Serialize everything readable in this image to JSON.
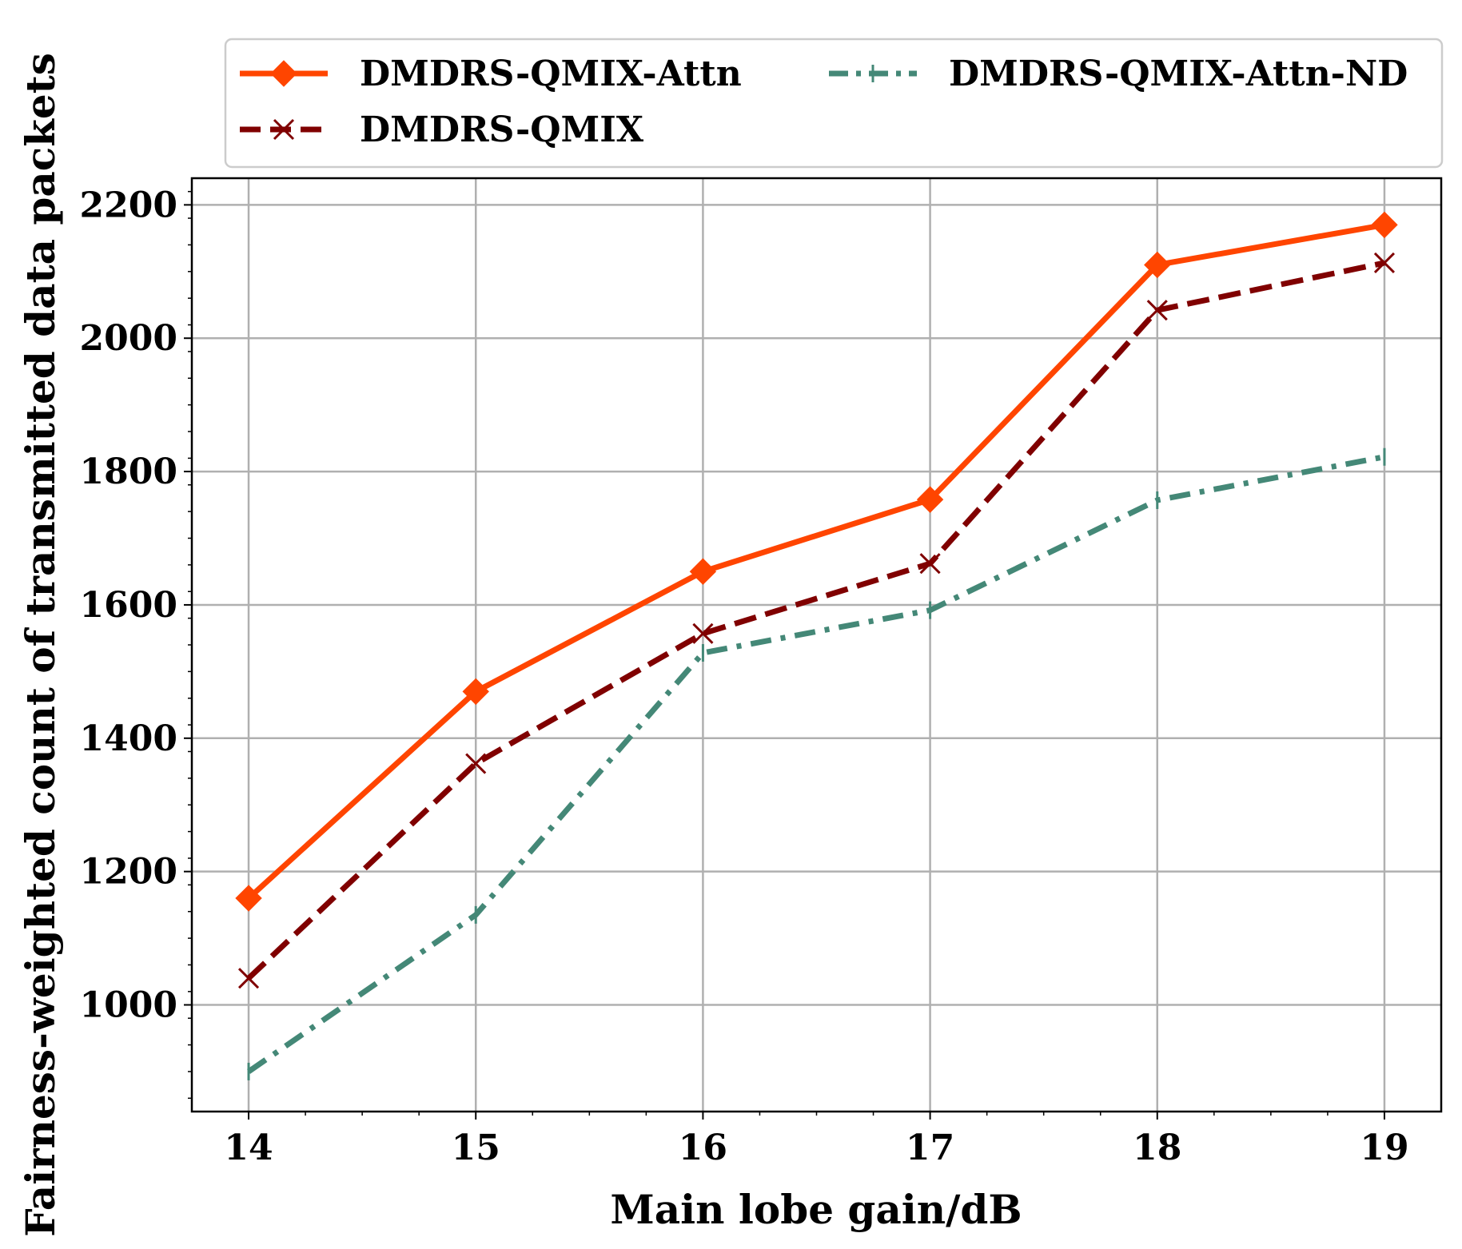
{
  "chart_data": {
    "type": "line",
    "x": [
      14,
      15,
      16,
      17,
      18,
      19
    ],
    "xticks": [
      "14",
      "15",
      "16",
      "17",
      "18",
      "19"
    ],
    "yticks": [
      "1000",
      "1200",
      "1400",
      "1600",
      "1800",
      "2000",
      "2200"
    ],
    "xlabel": "Main lobe gain/dB",
    "ylabel": "Fairness-weighted count of transmitted data packets",
    "xlim": [
      13.75,
      19.25
    ],
    "ylim": [
      840,
      2240
    ],
    "grid": true,
    "legend_position": "top",
    "series": [
      {
        "name": "DMDRS-QMIX-Attn",
        "values": [
          1160,
          1470,
          1650,
          1758,
          2110,
          2170
        ],
        "color": "#ff4500",
        "line_style": "solid",
        "marker": "diamond"
      },
      {
        "name": "DMDRS-QMIX",
        "values": [
          1040,
          1362,
          1557,
          1662,
          2042,
          2113
        ],
        "color": "#800000",
        "line_style": "dashed",
        "marker": "x"
      },
      {
        "name": "DMDRS-QMIX-Attn-ND",
        "values": [
          900,
          1135,
          1528,
          1592,
          1757,
          1822
        ],
        "color": "#448877",
        "line_style": "dashdot",
        "marker": "tick"
      }
    ]
  }
}
